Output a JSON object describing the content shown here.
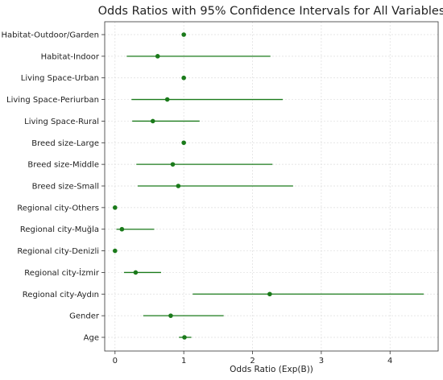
{
  "chart_data": {
    "type": "forest",
    "title": "Odds Ratios with 95% Confidence Intervals for All Variables",
    "xlabel": "Odds Ratio (Exp(B))",
    "ylabel": "",
    "xlim": [
      -0.15,
      4.7
    ],
    "xticks": [
      0,
      1,
      2,
      3,
      4
    ],
    "grid": true,
    "color": "#1a7a1a",
    "rows": [
      {
        "label": "Habitat-Outdoor/Garden",
        "or": 1.0,
        "lo": null,
        "hi": null
      },
      {
        "label": "Habitat-Indoor",
        "or": 0.62,
        "lo": 0.17,
        "hi": 2.26
      },
      {
        "label": "Living Space-Urban",
        "or": 1.0,
        "lo": null,
        "hi": null
      },
      {
        "label": "Living Space-Periurban",
        "or": 0.76,
        "lo": 0.24,
        "hi": 2.44
      },
      {
        "label": "Living Space-Rural",
        "or": 0.55,
        "lo": 0.25,
        "hi": 1.23
      },
      {
        "label": "Breed size-Large",
        "or": 1.0,
        "lo": null,
        "hi": null
      },
      {
        "label": "Breed size-Middle",
        "or": 0.84,
        "lo": 0.31,
        "hi": 2.29
      },
      {
        "label": "Breed size-Small",
        "or": 0.92,
        "lo": 0.33,
        "hi": 2.59
      },
      {
        "label": "Regional city-Others",
        "or": 0.0,
        "lo": null,
        "hi": null
      },
      {
        "label": "Regional city-Muğla",
        "or": 0.1,
        "lo": 0.02,
        "hi": 0.57
      },
      {
        "label": "Regional city-Denizli",
        "or": 0.0,
        "lo": null,
        "hi": null
      },
      {
        "label": "Regional city-İzmir",
        "or": 0.3,
        "lo": 0.13,
        "hi": 0.67
      },
      {
        "label": "Regional city-Aydın",
        "or": 2.25,
        "lo": 1.13,
        "hi": 4.49
      },
      {
        "label": "Gender",
        "or": 0.81,
        "lo": 0.41,
        "hi": 1.58
      },
      {
        "label": "Age",
        "or": 1.01,
        "lo": 0.93,
        "hi": 1.11
      }
    ]
  }
}
